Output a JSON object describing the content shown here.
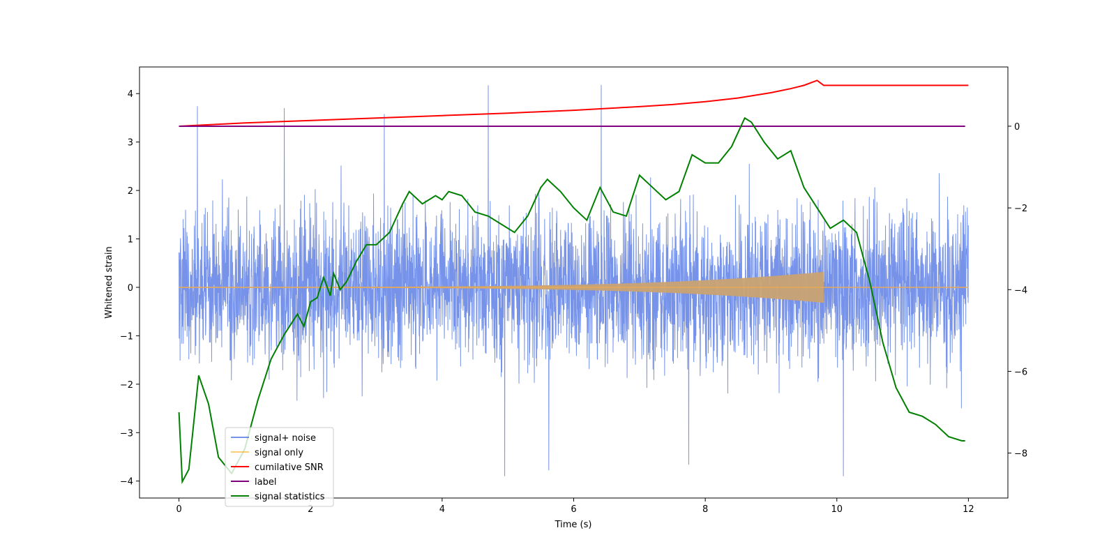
{
  "chart_data": {
    "type": "line",
    "xlabel": "Time (s)",
    "ylabel": "Whitened strain",
    "xlim": [
      -0.6,
      12.6
    ],
    "ylim": [
      -4.35,
      4.55
    ],
    "y2lim": [
      -9.1,
      1.45
    ],
    "xticks": [
      0,
      2,
      4,
      6,
      8,
      10,
      12
    ],
    "yticks": [
      -4,
      -3,
      -2,
      -1,
      0,
      1,
      2,
      3,
      4
    ],
    "y2ticks": [
      -8,
      -6,
      -4,
      -2,
      0
    ],
    "grid": false,
    "legend_position": "lower-left",
    "series": [
      {
        "name": "signal+ noise",
        "axis": "left",
        "color": "#4169e1",
        "description_values": {
          "time_range": [
            0,
            12
          ],
          "amplitude_band": [
            -2.3,
            2.3
          ],
          "notable_peaks": [
            [
              0.28,
              3.74
            ],
            [
              1.6,
              3.7
            ],
            [
              3.12,
              3.58
            ],
            [
              4.7,
              4.17
            ],
            [
              6.42,
              4.18
            ],
            [
              4.95,
              -3.9
            ],
            [
              10.1,
              -3.9
            ],
            [
              5.62,
              -3.78
            ],
            [
              7.75,
              -3.66
            ]
          ]
        }
      },
      {
        "name": "signal only",
        "axis": "left",
        "color": "#ffa500",
        "chirp": {
          "t_start": 0,
          "t_merge": 9.8,
          "t_end": 12,
          "amp_start": 0.01,
          "amp_peak": 0.32
        }
      },
      {
        "name": "cumilative SNR",
        "axis": "right",
        "color": "#ff0000",
        "x": [
          0,
          1,
          2,
          3,
          4,
          5,
          6,
          7,
          7.5,
          8,
          8.5,
          9,
          9.3,
          9.5,
          9.7,
          9.8,
          12
        ],
        "values": [
          0.0,
          0.08,
          0.14,
          0.2,
          0.26,
          0.32,
          0.39,
          0.48,
          0.53,
          0.6,
          0.69,
          0.82,
          0.92,
          1.0,
          1.12,
          1.0,
          1.0
        ]
      },
      {
        "name": "label",
        "axis": "right",
        "color": "#800080",
        "x": [
          0,
          11.95
        ],
        "values": [
          0,
          0
        ]
      },
      {
        "name": "signal statistics",
        "axis": "right",
        "color": "#008000",
        "x": [
          0,
          0.05,
          0.15,
          0.3,
          0.45,
          0.6,
          0.8,
          1.0,
          1.2,
          1.4,
          1.6,
          1.8,
          1.9,
          2.0,
          2.1,
          2.2,
          2.3,
          2.35,
          2.45,
          2.55,
          2.7,
          2.85,
          3.0,
          3.2,
          3.4,
          3.5,
          3.7,
          3.9,
          4.0,
          4.1,
          4.3,
          4.5,
          4.7,
          4.9,
          5.1,
          5.3,
          5.5,
          5.6,
          5.8,
          6.0,
          6.2,
          6.4,
          6.6,
          6.8,
          7.0,
          7.2,
          7.4,
          7.6,
          7.8,
          8.0,
          8.2,
          8.4,
          8.6,
          8.7,
          8.9,
          9.1,
          9.3,
          9.5,
          9.7,
          9.9,
          10.1,
          10.3,
          10.5,
          10.7,
          10.9,
          11.1,
          11.3,
          11.5,
          11.7,
          11.9,
          11.95
        ],
        "values": [
          -7.0,
          -8.7,
          -8.4,
          -6.1,
          -6.8,
          -8.1,
          -8.5,
          -7.9,
          -6.7,
          -5.7,
          -5.1,
          -4.6,
          -4.9,
          -4.3,
          -4.2,
          -3.7,
          -4.15,
          -3.6,
          -4.0,
          -3.8,
          -3.3,
          -2.9,
          -2.9,
          -2.6,
          -1.9,
          -1.6,
          -1.9,
          -1.7,
          -1.8,
          -1.6,
          -1.7,
          -2.1,
          -2.2,
          -2.4,
          -2.6,
          -2.2,
          -1.5,
          -1.3,
          -1.6,
          -2.0,
          -2.3,
          -1.5,
          -2.1,
          -2.2,
          -1.2,
          -1.5,
          -1.8,
          -1.6,
          -0.7,
          -0.9,
          -0.9,
          -0.5,
          0.2,
          0.1,
          -0.4,
          -0.8,
          -0.6,
          -1.5,
          -2.0,
          -2.5,
          -2.3,
          -2.6,
          -3.8,
          -5.3,
          -6.4,
          -7.0,
          -7.1,
          -7.3,
          -7.6,
          -7.7,
          -7.7
        ]
      }
    ]
  }
}
